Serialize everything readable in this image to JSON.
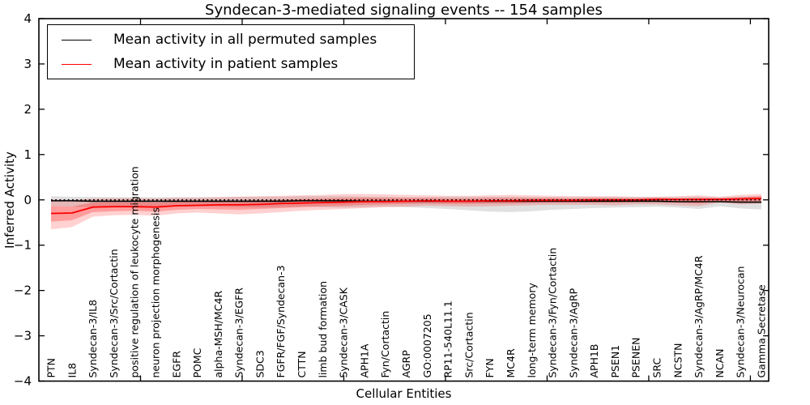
{
  "title": "Syndecan-3-mediated signaling events -- 154 samples",
  "legend": {
    "items": [
      {
        "label": "Mean activity in all permuted samples",
        "color": "#000000"
      },
      {
        "label": "Mean activity in patient samples",
        "color": "#ff0000"
      }
    ]
  },
  "colors": {
    "patient_line": "#ff0000",
    "permuted_line": "#000000",
    "zero_reference_line": "#000000",
    "patient_band": "#ff0000",
    "permuted_band": "#000000",
    "axis": "#000000"
  },
  "chart_data": {
    "type": "line",
    "title": "Syndecan-3-mediated signaling events -- 154 samples",
    "xlabel": "Cellular Entities",
    "ylabel": "Inferred Activity",
    "ylim": [
      -4,
      4
    ],
    "yticks": [
      -4,
      -3,
      -2,
      -1,
      0,
      1,
      2,
      3,
      4
    ],
    "xlim": [
      0,
      35.9
    ],
    "x_major_ticks": [
      5,
      10,
      15,
      20,
      25,
      30,
      35
    ],
    "grid": false,
    "legend_position": "upper left",
    "categories": [
      "PTN",
      "IL8",
      "Syndecan-3/IL8",
      "Syndecan-3/Src/Cortactin",
      "positive regulation of leukocyte migration",
      "neuron projection morphogenesis",
      "EGFR",
      "POMC",
      "alpha-MSH/MC4R",
      "Syndecan-3/EGFR",
      "SDC3",
      "FGFR/FGF/Syndecan-3",
      "CTTN",
      "limb bud formation",
      "Syndecan-3/CASK",
      "APH1A",
      "Fyn/Cortactin",
      "AGRP",
      "GO:0007205",
      "RP11-540L11.1",
      "Src/Cortactin",
      "FYN",
      "MC4R",
      "long-term memory",
      "Syndecan-3/Fyn/Cortactin",
      "Syndecan-3/AgRP",
      "APH1B",
      "PSEN1",
      "PSENEN",
      "SRC",
      "NCSTN",
      "Syndecan-3/AgRP/MC4R",
      "NCAN",
      "Syndecan-3/Neurocan",
      "Gamma Secretase"
    ],
    "series": [
      {
        "name": "Mean activity in all permuted samples",
        "color": "#000000",
        "style": "solid",
        "width": 1.6,
        "values": [
          -0.02,
          -0.02,
          -0.03,
          -0.03,
          -0.03,
          -0.03,
          -0.03,
          -0.03,
          -0.03,
          -0.03,
          -0.03,
          -0.03,
          -0.02,
          -0.02,
          -0.02,
          -0.03,
          -0.03,
          -0.03,
          -0.03,
          -0.03,
          -0.03,
          -0.03,
          -0.03,
          -0.03,
          -0.03,
          -0.03,
          -0.03,
          -0.03,
          -0.03,
          -0.03,
          -0.04,
          -0.04,
          -0.04,
          -0.05,
          -0.05
        ]
      },
      {
        "name": "Mean activity in patient samples",
        "color": "#ff0000",
        "style": "solid",
        "width": 1.8,
        "values": [
          -0.3,
          -0.29,
          -0.16,
          -0.15,
          -0.15,
          -0.16,
          -0.13,
          -0.12,
          -0.11,
          -0.11,
          -0.1,
          -0.08,
          -0.07,
          -0.06,
          -0.05,
          -0.04,
          -0.04,
          -0.03,
          -0.02,
          -0.03,
          -0.03,
          -0.02,
          -0.02,
          -0.01,
          -0.01,
          -0.01,
          0.0,
          0.0,
          0.0,
          0.01,
          0.01,
          0.01,
          0.01,
          0.02,
          0.03
        ]
      },
      {
        "name": "zero-reference",
        "color": "#000000",
        "style": "dotted",
        "width": 1.6,
        "values": [
          0,
          0,
          0,
          0,
          0,
          0,
          0,
          0,
          0,
          0,
          0,
          0,
          0,
          0,
          0,
          0,
          0,
          0,
          0,
          0,
          0,
          0,
          0,
          0,
          0,
          0,
          0,
          0,
          0,
          0,
          0,
          0,
          0,
          0,
          0
        ]
      }
    ],
    "bands": [
      {
        "name": "permuted-samples-range",
        "color": "#000000",
        "opacity": 0.12,
        "upper": [
          0.08,
          0.07,
          0.07,
          0.06,
          0.06,
          0.06,
          0.06,
          0.06,
          0.06,
          0.07,
          0.07,
          0.07,
          0.08,
          0.08,
          0.08,
          0.07,
          0.07,
          0.06,
          0.06,
          0.07,
          0.07,
          0.07,
          0.07,
          0.06,
          0.06,
          0.06,
          0.06,
          0.06,
          0.06,
          0.06,
          0.06,
          0.07,
          0.05,
          0.07,
          0.08
        ],
        "lower": [
          -0.14,
          -0.15,
          -0.16,
          -0.15,
          -0.15,
          -0.16,
          -0.15,
          -0.14,
          -0.15,
          -0.16,
          -0.17,
          -0.16,
          -0.15,
          -0.16,
          -0.17,
          -0.16,
          -0.15,
          -0.16,
          -0.18,
          -0.2,
          -0.23,
          -0.26,
          -0.27,
          -0.25,
          -0.22,
          -0.2,
          -0.18,
          -0.17,
          -0.16,
          -0.15,
          -0.17,
          -0.2,
          -0.14,
          -0.19,
          -0.21
        ]
      },
      {
        "name": "patient-samples-range-outer",
        "color": "#ff0000",
        "opacity": 0.18,
        "upper": [
          0.01,
          0.0,
          0.03,
          0.04,
          0.04,
          0.03,
          0.05,
          0.05,
          0.06,
          0.07,
          0.08,
          0.09,
          0.1,
          0.11,
          0.13,
          0.13,
          0.12,
          0.11,
          0.1,
          0.09,
          0.09,
          0.1,
          0.11,
          0.1,
          0.09,
          0.08,
          0.08,
          0.08,
          0.07,
          0.07,
          0.08,
          0.1,
          0.07,
          0.11,
          0.13
        ],
        "lower": [
          -0.65,
          -0.6,
          -0.37,
          -0.34,
          -0.33,
          -0.35,
          -0.3,
          -0.28,
          -0.3,
          -0.32,
          -0.3,
          -0.27,
          -0.24,
          -0.22,
          -0.2,
          -0.18,
          -0.16,
          -0.15,
          -0.13,
          -0.14,
          -0.15,
          -0.14,
          -0.13,
          -0.12,
          -0.11,
          -0.11,
          -0.11,
          -0.12,
          -0.1,
          -0.1,
          -0.12,
          -0.14,
          -0.06,
          -0.1,
          -0.08
        ]
      },
      {
        "name": "patient-samples-range-inner",
        "color": "#ff0000",
        "opacity": 0.25,
        "upper": [
          -0.14,
          -0.15,
          -0.06,
          -0.05,
          -0.05,
          -0.06,
          -0.04,
          -0.03,
          -0.02,
          -0.02,
          -0.01,
          0.0,
          0.02,
          0.03,
          0.04,
          0.05,
          0.04,
          0.04,
          0.04,
          0.03,
          0.03,
          0.04,
          0.04,
          0.04,
          0.04,
          0.03,
          0.04,
          0.04,
          0.03,
          0.04,
          0.03,
          0.04,
          0.04,
          0.06,
          0.08
        ],
        "lower": [
          -0.48,
          -0.45,
          -0.27,
          -0.25,
          -0.24,
          -0.26,
          -0.22,
          -0.2,
          -0.21,
          -0.22,
          -0.2,
          -0.18,
          -0.16,
          -0.14,
          -0.13,
          -0.11,
          -0.1,
          -0.09,
          -0.08,
          -0.09,
          -0.09,
          -0.08,
          -0.08,
          -0.07,
          -0.06,
          -0.06,
          -0.06,
          -0.06,
          -0.05,
          -0.05,
          -0.06,
          -0.08,
          -0.03,
          -0.04,
          -0.03
        ]
      }
    ]
  }
}
